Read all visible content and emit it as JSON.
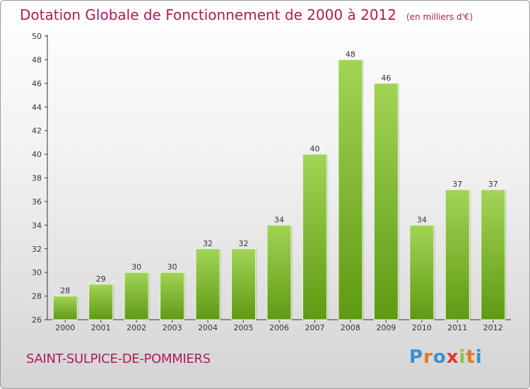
{
  "header": {
    "title": "Dotation Globale de Fonctionnement de 2000 à 2012",
    "unit": "(en milliers d'€)"
  },
  "footer": {
    "commune": "SAINT-SULPICE-DE-POMMIERS",
    "logo": [
      "P",
      "r",
      "o",
      "x",
      "i",
      "t",
      "i"
    ]
  },
  "chart_data": {
    "type": "bar",
    "title": "Dotation Globale de Fonctionnement de 2000 à 2012",
    "subtitle": "(en milliers d'€)",
    "xlabel": "",
    "ylabel": "",
    "categories": [
      "2000",
      "2001",
      "2002",
      "2003",
      "2004",
      "2005",
      "2006",
      "2007",
      "2008",
      "2009",
      "2010",
      "2011",
      "2012"
    ],
    "values": [
      28,
      29,
      30,
      30,
      32,
      32,
      34,
      40,
      48,
      46,
      34,
      37,
      37
    ],
    "ylim": [
      26,
      50
    ],
    "yticks": [
      26,
      28,
      30,
      32,
      34,
      36,
      38,
      40,
      42,
      44,
      46,
      48,
      50
    ],
    "grid": false,
    "legend": "none",
    "colors": {
      "bar_top": "#a2d456",
      "bar_bottom": "#5f9a12",
      "title": "#b01a5a"
    }
  }
}
